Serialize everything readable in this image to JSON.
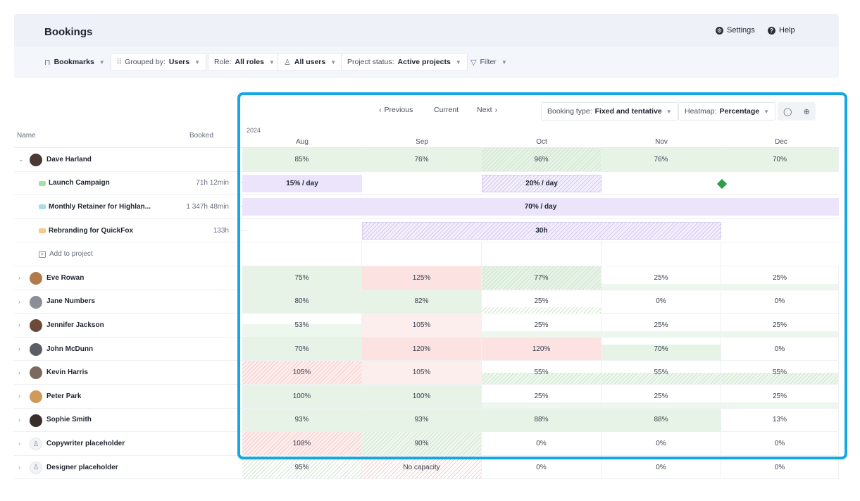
{
  "header": {
    "title": "Bookings",
    "settings_label": "Settings",
    "help_label": "Help"
  },
  "toolbar": {
    "bookmarks_label": "Bookmarks",
    "grouped_prefix": "Grouped by:",
    "grouped_value": "Users",
    "role_prefix": "Role:",
    "role_value": "All roles",
    "users_value": "All users",
    "status_prefix": "Project status:",
    "status_value": "Active projects",
    "filter_label": "Filter"
  },
  "timeline_nav": {
    "previous_label": "Previous",
    "current_label": "Current",
    "next_label": "Next"
  },
  "booking_type": {
    "prefix": "Booking type:",
    "value": "Fixed and tentative"
  },
  "heatmap": {
    "prefix": "Heatmap:",
    "value": "Percentage"
  },
  "columns": {
    "name_label": "Name",
    "booked_label": "Booked",
    "year": "2024",
    "months": [
      "Aug",
      "Sep",
      "Oct",
      "Nov",
      "Dec"
    ]
  },
  "colors": {
    "highlight": "#14a7e6",
    "over": "#fde2e2",
    "under": "#e6f3e6",
    "project": "#ebe4fb"
  },
  "rows": [
    {
      "type": "user",
      "name": "Dave Harland",
      "expanded": true,
      "cells": [
        "85%",
        "76%",
        "96%",
        "76%",
        "70%"
      ]
    },
    {
      "type": "project",
      "name": "Launch Campaign",
      "booked": "71h 12min",
      "bars": [
        "15% / day",
        "20% / day"
      ]
    },
    {
      "type": "project",
      "name": "Monthly Retainer for Highlan...",
      "booked": "1 347h 48min",
      "bars": [
        "70% / day"
      ]
    },
    {
      "type": "project",
      "name": "Rebranding for QuickFox",
      "booked": "133h",
      "bars": [
        "30h"
      ]
    },
    {
      "type": "add",
      "label": "Add to project"
    },
    {
      "type": "user",
      "name": "Eve Rowan",
      "cells": [
        "75%",
        "125%",
        "77%",
        "25%",
        "25%"
      ]
    },
    {
      "type": "user",
      "name": "Jane Numbers",
      "cells": [
        "80%",
        "82%",
        "25%",
        "0%",
        "0%"
      ]
    },
    {
      "type": "user",
      "name": "Jennifer Jackson",
      "cells": [
        "53%",
        "105%",
        "25%",
        "25%",
        "25%"
      ]
    },
    {
      "type": "user",
      "name": "John McDunn",
      "cells": [
        "70%",
        "120%",
        "120%",
        "70%",
        "0%"
      ]
    },
    {
      "type": "user",
      "name": "Kevin Harris",
      "cells": [
        "105%",
        "105%",
        "55%",
        "55%",
        "55%"
      ]
    },
    {
      "type": "user",
      "name": "Peter Park",
      "cells": [
        "100%",
        "100%",
        "25%",
        "25%",
        "25%"
      ]
    },
    {
      "type": "user",
      "name": "Sophie Smith",
      "cells": [
        "93%",
        "93%",
        "88%",
        "88%",
        "13%"
      ]
    },
    {
      "type": "placeholder",
      "name": "Copywriter placeholder",
      "cells": [
        "108%",
        "90%",
        "0%",
        "0%",
        "0%"
      ]
    },
    {
      "type": "placeholder",
      "name": "Designer placeholder",
      "cells": [
        "95%",
        "No capacity",
        "0%",
        "0%",
        "0%"
      ]
    }
  ]
}
